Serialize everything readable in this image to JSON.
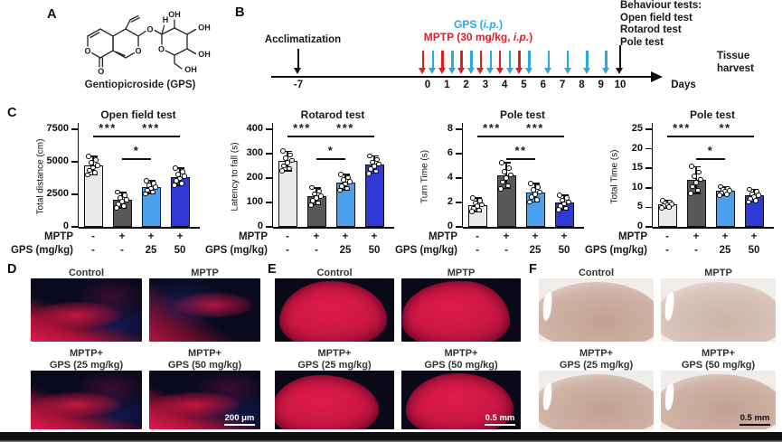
{
  "panelA": {
    "label": "A",
    "caption": "Gentiopicroside (GPS)",
    "atoms": [
      "O",
      "O",
      "O",
      "O",
      "O",
      "H",
      "OH",
      "OH",
      "OH",
      "OH"
    ]
  },
  "panelB": {
    "label": "B",
    "acclimatization": "Acclimatization",
    "gps_label": [
      "GPS (",
      "i.p.",
      ")"
    ],
    "mptp_label": [
      "MPTP (30 mg/kg, ",
      "i.p.",
      ")"
    ],
    "behaviour_lines": [
      "Behaviour tests:",
      "Open field test",
      "Rotarod test",
      "Pole test"
    ],
    "tissue_harvest_lines": [
      "Tissue",
      "harvest"
    ],
    "pre_day": "-7",
    "days": [
      "0",
      "1",
      "2",
      "3",
      "4",
      "5",
      "6",
      "7",
      "8",
      "9",
      "10"
    ],
    "days_unit": "Days",
    "red_arrow_days": [
      0,
      1,
      2,
      3,
      4,
      5
    ],
    "blue_arrow_days": [
      0,
      1,
      2,
      3,
      4,
      5,
      6,
      7,
      8,
      9
    ],
    "black_arrow_day": 10,
    "colors": {
      "gps_blue": "#2da9e1",
      "mptp_red": "#e31e24",
      "black": "#111111"
    }
  },
  "panelC": {
    "label": "C"
  },
  "chart_data": [
    {
      "type": "bar",
      "title": "Open field test",
      "ylabel": "Total distance (cm)",
      "ylim": [
        0,
        7500
      ],
      "yticks": [
        0,
        2500,
        5000,
        7500
      ],
      "categories": [
        "Control",
        "MPTP",
        "MPTP+GPS 25 mg/kg",
        "MPTP+GPS 50 mg/kg"
      ],
      "values": [
        4700,
        2050,
        3050,
        3850
      ],
      "errors": [
        700,
        600,
        500,
        650
      ],
      "n_points": 8,
      "bar_colors": [
        "#e9e9e9",
        "#595959",
        "#4aa0ec",
        "#3038d6"
      ],
      "significance": [
        {
          "from": 0,
          "to": 1,
          "label": "***",
          "level": 0
        },
        {
          "from": 1,
          "to": 2,
          "label": "*",
          "level": 1
        },
        {
          "from": 1,
          "to": 3,
          "label": "***",
          "level": 0
        }
      ],
      "x_rows": [
        {
          "label": "MPTP",
          "values": [
            "-",
            "+",
            "+",
            "+"
          ]
        },
        {
          "label": "GPS (mg/kg)",
          "values": [
            "-",
            "-",
            "25",
            "50"
          ]
        }
      ]
    },
    {
      "type": "bar",
      "title": "Rotarod test",
      "ylabel": "Latency to fall (s)",
      "ylim": [
        0,
        400
      ],
      "yticks": [
        0,
        100,
        200,
        300,
        400
      ],
      "categories": [
        "Control",
        "MPTP",
        "MPTP+GPS 25 mg/kg",
        "MPTP+GPS 50 mg/kg"
      ],
      "values": [
        270,
        125,
        183,
        255
      ],
      "errors": [
        40,
        35,
        32,
        35
      ],
      "n_points": 8,
      "bar_colors": [
        "#e9e9e9",
        "#595959",
        "#4aa0ec",
        "#3038d6"
      ],
      "significance": [
        {
          "from": 0,
          "to": 1,
          "label": "***",
          "level": 0
        },
        {
          "from": 1,
          "to": 2,
          "label": "*",
          "level": 1
        },
        {
          "from": 1,
          "to": 3,
          "label": "***",
          "level": 0
        }
      ],
      "x_rows": [
        {
          "label": "MPTP",
          "values": [
            "-",
            "+",
            "+",
            "+"
          ]
        },
        {
          "label": "GPS (mg/kg)",
          "values": [
            "-",
            "-",
            "25",
            "50"
          ]
        }
      ]
    },
    {
      "type": "bar",
      "title": "Pole test",
      "ylabel": "Turn Time (s)",
      "ylim": [
        0,
        8
      ],
      "yticks": [
        0,
        2,
        4,
        6,
        8
      ],
      "categories": [
        "Control",
        "MPTP",
        "MPTP+GPS 25 mg/kg",
        "MPTP+GPS 50 mg/kg"
      ],
      "values": [
        1.8,
        4.2,
        2.8,
        2.0
      ],
      "errors": [
        0.55,
        1.05,
        0.75,
        0.6
      ],
      "n_points": 8,
      "bar_colors": [
        "#e9e9e9",
        "#595959",
        "#4aa0ec",
        "#3038d6"
      ],
      "significance": [
        {
          "from": 0,
          "to": 1,
          "label": "***",
          "level": 0
        },
        {
          "from": 1,
          "to": 2,
          "label": "**",
          "level": 1
        },
        {
          "from": 1,
          "to": 3,
          "label": "***",
          "level": 0
        }
      ],
      "x_rows": [
        {
          "label": "MPTP",
          "values": [
            "-",
            "+",
            "+",
            "+"
          ]
        },
        {
          "label": "GPS (mg/kg)",
          "values": [
            "-",
            "-",
            "25",
            "50"
          ]
        }
      ]
    },
    {
      "type": "bar",
      "title": "Pole test",
      "ylabel": "Total Time (s)",
      "ylim": [
        0,
        25
      ],
      "yticks": [
        0,
        5,
        10,
        15,
        20,
        25
      ],
      "categories": [
        "Control",
        "MPTP",
        "MPTP+GPS 25 mg/kg",
        "MPTP+GPS 50 mg/kg"
      ],
      "values": [
        5.8,
        12.0,
        9.2,
        8.0
      ],
      "errors": [
        0.9,
        3.4,
        1.1,
        1.6
      ],
      "n_points": 8,
      "bar_colors": [
        "#e9e9e9",
        "#595959",
        "#4aa0ec",
        "#3038d6"
      ],
      "significance": [
        {
          "from": 0,
          "to": 1,
          "label": "***",
          "level": 0
        },
        {
          "from": 1,
          "to": 2,
          "label": "*",
          "level": 1
        },
        {
          "from": 1,
          "to": 3,
          "label": "**",
          "level": 0
        }
      ],
      "x_rows": [
        {
          "label": "MPTP",
          "values": [
            "-",
            "+",
            "+",
            "+"
          ]
        },
        {
          "label": "GPS (mg/kg)",
          "values": [
            "-",
            "-",
            "25",
            "50"
          ]
        }
      ]
    }
  ],
  "image_panels": [
    {
      "label": "D",
      "tiles": [
        {
          "caption": [
            "Control"
          ]
        },
        {
          "caption": [
            "MPTP"
          ]
        },
        {
          "caption": [
            "MPTP+",
            "GPS (25 mg/kg)"
          ]
        },
        {
          "caption": [
            "MPTP+",
            "GPS (50 mg/kg)"
          ]
        }
      ],
      "scale_bar": "200 μm",
      "scale_style": "light"
    },
    {
      "label": "E",
      "tiles": [
        {
          "caption": [
            "Control"
          ]
        },
        {
          "caption": [
            "MPTP"
          ]
        },
        {
          "caption": [
            "MPTP+",
            "GPS (25 mg/kg)"
          ]
        },
        {
          "caption": [
            "MPTP+",
            "GPS (50 mg/kg)"
          ]
        }
      ],
      "scale_bar": "0.5 mm",
      "scale_style": "light"
    },
    {
      "label": "F",
      "tiles": [
        {
          "caption": [
            "Control"
          ]
        },
        {
          "caption": [
            "MPTP"
          ]
        },
        {
          "caption": [
            "MPTP+",
            "GPS (25 mg/kg)"
          ]
        },
        {
          "caption": [
            "MPTP+",
            "GPS (50 mg/kg)"
          ]
        }
      ],
      "scale_bar": "0.5 mm",
      "scale_style": "dark"
    }
  ]
}
